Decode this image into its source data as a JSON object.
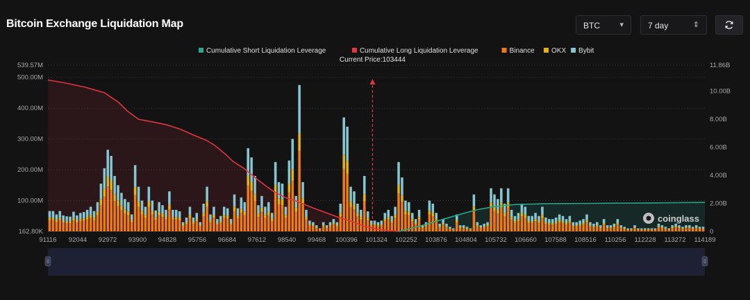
{
  "header": {
    "title": "Bitcoin Exchange Liquidation Map",
    "coin_select": {
      "value": "BTC",
      "icon": "caret-down-icon"
    },
    "range_select": {
      "value": "7 day",
      "icon": "updown-icon"
    },
    "refresh_icon": "refresh-icon"
  },
  "colors": {
    "background": "#131314",
    "short_line": "#26a78b",
    "long_line": "#e0343f",
    "binance": "#f07a16",
    "okx": "#e8b20e",
    "bybit": "#86c6d0",
    "current_price_line": "#e0343f"
  },
  "chart_data": {
    "type": "bar",
    "title": "Bitcoin Exchange Liquidation Map",
    "legend": [
      {
        "name": "Cumulative Short Liquidation Leverage",
        "color": "#26a78b"
      },
      {
        "name": "Cumulative Long Liquidation Leverage",
        "color": "#e0343f"
      },
      {
        "name": "Binance",
        "color": "#f07a16"
      },
      {
        "name": "OKX",
        "color": "#e8b20e"
      },
      {
        "name": "Bybit",
        "color": "#86c6d0"
      }
    ],
    "legend_position": "top-center",
    "current_price_label": "Current Price:103444",
    "current_price": 103444,
    "x_range": [
      91116,
      114189
    ],
    "x_ticks": [
      91116,
      92044,
      92972,
      93900,
      94828,
      95756,
      96684,
      97612,
      98540,
      99468,
      100396,
      101324,
      102252,
      103876,
      104804,
      105732,
      106660,
      107588,
      108516,
      110256,
      112228,
      113272,
      114189
    ],
    "y_left": {
      "unit": "USD",
      "range": [
        0,
        539.57
      ],
      "ticks": [
        {
          "value": 0,
          "label": "162.80K"
        },
        {
          "value": 100,
          "label": "100.00M"
        },
        {
          "value": 200,
          "label": "200.00M"
        },
        {
          "value": 300,
          "label": "300.00M"
        },
        {
          "value": 400,
          "label": "400.00M"
        },
        {
          "value": 500,
          "label": "500.00M"
        },
        {
          "value": 539.57,
          "label": "539.57M"
        }
      ]
    },
    "y_right": {
      "unit": "USD",
      "range": [
        0,
        11.86
      ],
      "ticks": [
        {
          "value": 0,
          "label": "0"
        },
        {
          "value": 2,
          "label": "2.00B"
        },
        {
          "value": 4,
          "label": "4.00B"
        },
        {
          "value": 6,
          "label": "6.00B"
        },
        {
          "value": 8,
          "label": "8.00B"
        },
        {
          "value": 10,
          "label": "10.00B"
        },
        {
          "value": 11.86,
          "label": "11.86B"
        }
      ]
    },
    "bars_total_millions": [
      66,
      66,
      55,
      66,
      52,
      49,
      48,
      64,
      52,
      60,
      63,
      70,
      80,
      66,
      95,
      155,
      205,
      265,
      245,
      180,
      150,
      125,
      105,
      95,
      55,
      215,
      145,
      100,
      80,
      145,
      100,
      68,
      95,
      85,
      70,
      130,
      70,
      70,
      65,
      30,
      45,
      80,
      45,
      60,
      30,
      90,
      145,
      55,
      80,
      40,
      50,
      80,
      75,
      40,
      120,
      75,
      110,
      95,
      270,
      240,
      180,
      85,
      115,
      80,
      95,
      60,
      225,
      160,
      155,
      80,
      230,
      300,
      115,
      475,
      160,
      70,
      35,
      30,
      20,
      10,
      30,
      20,
      30,
      40,
      30,
      90,
      370,
      340,
      145,
      130,
      90,
      70,
      180,
      65,
      35,
      35,
      30,
      35,
      60,
      70,
      50,
      80,
      225,
      175,
      100,
      95,
      60,
      40,
      70,
      20,
      30,
      100,
      90,
      60,
      25,
      40,
      25,
      15,
      10,
      55,
      20,
      20,
      15,
      10,
      120,
      30,
      20,
      25,
      30,
      140,
      120,
      105,
      140,
      90,
      140,
      70,
      50,
      60,
      90,
      80,
      50,
      50,
      60,
      50,
      80,
      45,
      40,
      40,
      45,
      55,
      50,
      40,
      50,
      30,
      30,
      35,
      40,
      55,
      30,
      25,
      30,
      20,
      40,
      20,
      20,
      25,
      40,
      20,
      15,
      10,
      10,
      20,
      10,
      10,
      10,
      10,
      10,
      10,
      25,
      20,
      15,
      10,
      20,
      25,
      20,
      15,
      20,
      20,
      15,
      20,
      15,
      15
    ],
    "binance_share": 0.55,
    "okx_share": 0.12,
    "long_cumulative_billions": [
      [
        91116,
        10.8
      ],
      [
        91700,
        10.6
      ],
      [
        92400,
        10.3
      ],
      [
        93100,
        9.9
      ],
      [
        93600,
        9.2
      ],
      [
        93900,
        8.6
      ],
      [
        94300,
        8.0
      ],
      [
        94828,
        7.8
      ],
      [
        95300,
        7.6
      ],
      [
        95756,
        7.3
      ],
      [
        96200,
        6.9
      ],
      [
        96684,
        6.5
      ],
      [
        97000,
        6.1
      ],
      [
        97300,
        5.6
      ],
      [
        97612,
        5.0
      ],
      [
        98000,
        4.5
      ],
      [
        98540,
        3.6
      ],
      [
        99000,
        2.9
      ],
      [
        99468,
        2.4
      ],
      [
        99800,
        2.2
      ],
      [
        100396,
        1.7
      ],
      [
        100800,
        1.4
      ],
      [
        101324,
        1.0
      ],
      [
        101800,
        0.7
      ],
      [
        102252,
        0.35
      ],
      [
        102800,
        0.12
      ],
      [
        103444,
        0.0
      ]
    ],
    "short_cumulative_billions": [
      [
        103444,
        0.0
      ],
      [
        103876,
        0.22
      ],
      [
        104300,
        0.45
      ],
      [
        104804,
        0.75
      ],
      [
        105300,
        1.05
      ],
      [
        105732,
        1.3
      ],
      [
        106200,
        1.55
      ],
      [
        106660,
        1.72
      ],
      [
        107100,
        1.85
      ],
      [
        107588,
        1.92
      ],
      [
        108516,
        1.97
      ],
      [
        110256,
        2.0
      ],
      [
        112228,
        2.03
      ],
      [
        113272,
        2.05
      ],
      [
        114189,
        2.07
      ]
    ],
    "watermark": "coinglass"
  }
}
